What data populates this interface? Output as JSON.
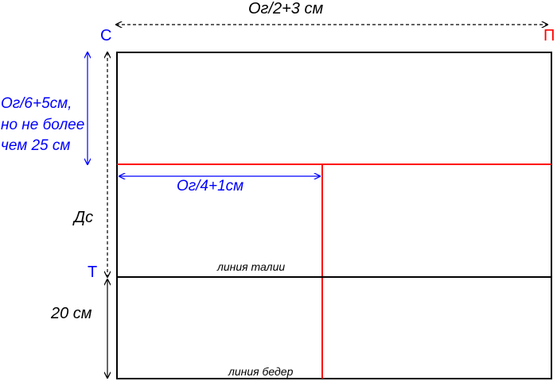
{
  "colors": {
    "frame": "#000000",
    "construction": "#ff0000",
    "dimension_blue": "#0000ff",
    "point_blue": "#0000ff",
    "point_red": "#ff0000",
    "background": "#ffffff"
  },
  "points": {
    "s": "С",
    "p": "П",
    "t": "Т"
  },
  "dimensions": {
    "width": "Ог/2+3 см",
    "armhole_depth_line1": "Ог/6+5см,",
    "armhole_depth_line2": "но не более",
    "armhole_depth_line3": "чем 25 см",
    "back_width": "Ог/4+1см",
    "back_length": "Дс",
    "hip_depth": "20 см"
  },
  "lines": {
    "waist": "линия талии",
    "hips": "линия бедер"
  }
}
